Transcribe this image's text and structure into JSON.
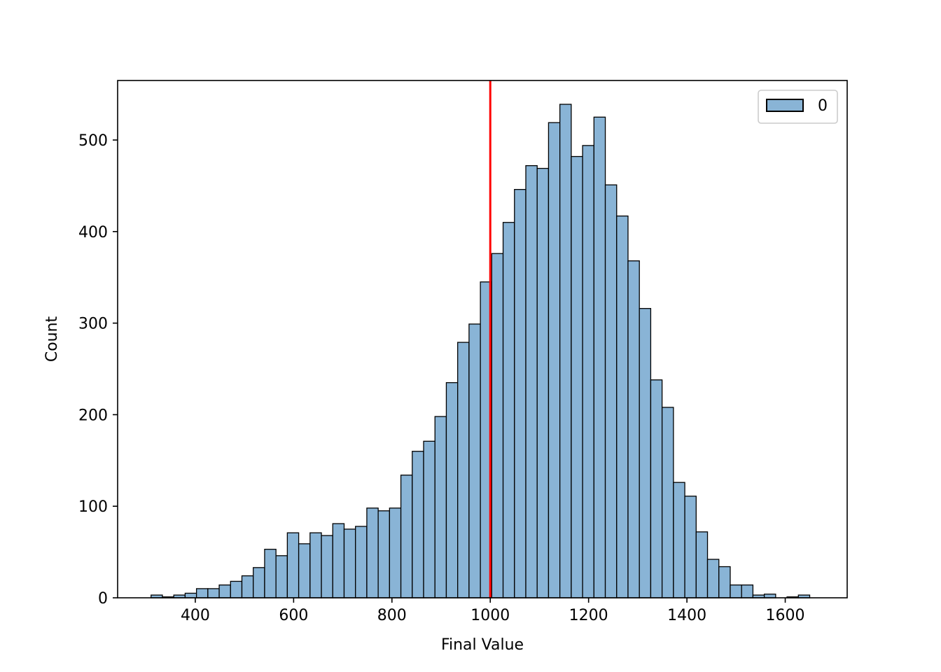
{
  "chart_data": {
    "type": "bar",
    "subtype": "histogram",
    "title": "",
    "xlabel": "Final Value",
    "ylabel": "Count",
    "xlim": [
      242,
      1726
    ],
    "ylim": [
      0,
      565
    ],
    "xticks": [
      400,
      600,
      800,
      1000,
      1200,
      1400,
      1600
    ],
    "yticks": [
      0,
      100,
      200,
      300,
      400,
      500
    ],
    "grid": false,
    "legend": {
      "position": "top-right",
      "entries": [
        "0"
      ]
    },
    "bar_color": "#89b4d6",
    "bar_edge_color": "#000000",
    "reference_line": {
      "x": 1000,
      "color": "#ff0000"
    },
    "bin_start": 310,
    "bin_width": 23.1,
    "series": [
      {
        "name": "0",
        "values": [
          3,
          1,
          3,
          5,
          10,
          10,
          14,
          18,
          24,
          33,
          53,
          46,
          71,
          59,
          71,
          68,
          81,
          75,
          78,
          98,
          95,
          98,
          134,
          160,
          171,
          198,
          235,
          279,
          299,
          345,
          376,
          410,
          446,
          472,
          469,
          519,
          539,
          482,
          494,
          525,
          451,
          417,
          368,
          316,
          238,
          208,
          126,
          111,
          72,
          42,
          34,
          14,
          14,
          3,
          4,
          0,
          1,
          3
        ]
      }
    ]
  }
}
